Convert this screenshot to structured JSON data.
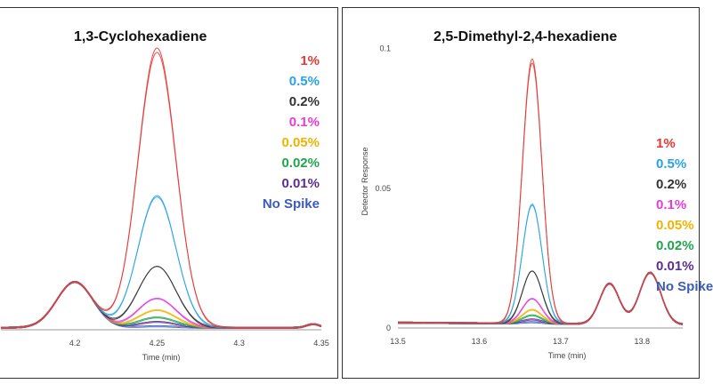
{
  "chart_data": [
    {
      "type": "line",
      "title": "1,3-Cyclohexadiene",
      "xlabel": "Time (min)",
      "ylabel": "",
      "x_ticks": [
        "4.2",
        "4.25",
        "4.3",
        "4.35"
      ],
      "y_ticks": [],
      "xlim": [
        4.155,
        4.35
      ],
      "ylim": [
        0,
        1.0
      ],
      "legend_placement": "top-right",
      "base_peak": {
        "center": 4.2,
        "width": 0.011,
        "height": 0.155
      },
      "main_peak": {
        "center": 4.25,
        "width": 0.0115
      },
      "series": [
        {
          "name": "1%",
          "color": "#e53935",
          "peak_height": 0.95
        },
        {
          "name": "0.5%",
          "color": "#29a3e8",
          "peak_height": 0.45
        },
        {
          "name": "0.2%",
          "color": "#333333",
          "peak_height": 0.21
        },
        {
          "name": "0.1%",
          "color": "#e83bd9",
          "peak_height": 0.1
        },
        {
          "name": "0.05%",
          "color": "#f2b200",
          "peak_height": 0.06
        },
        {
          "name": "0.02%",
          "color": "#1fa64a",
          "peak_height": 0.035
        },
        {
          "name": "0.01%",
          "color": "#5b2d8e",
          "peak_height": 0.02
        },
        {
          "name": "No Spike",
          "color": "#3b5bbd",
          "peak_height": 0.005
        }
      ]
    },
    {
      "type": "line",
      "title": "2,5-Dimethyl-2,4-hexadiene",
      "xlabel": "Time (min)",
      "ylabel": "Detector Response",
      "x_ticks": [
        "13.5",
        "13.6",
        "13.7",
        "13.8"
      ],
      "y_ticks": [
        "0",
        "0.05",
        "0.1"
      ],
      "xlim": [
        13.5,
        13.85
      ],
      "ylim": [
        0,
        0.105
      ],
      "legend_placement": "right",
      "base_peaks": [
        {
          "center": 13.76,
          "width": 0.012,
          "height": 0.0145
        },
        {
          "center": 13.81,
          "width": 0.013,
          "height": 0.0185
        }
      ],
      "main_peak": {
        "center": 13.665,
        "width": 0.012
      },
      "series": [
        {
          "name": "1%",
          "color": "#e53935",
          "peak_height": 0.095
        },
        {
          "name": "0.5%",
          "color": "#29a3e8",
          "peak_height": 0.043
        },
        {
          "name": "0.2%",
          "color": "#333333",
          "peak_height": 0.019
        },
        {
          "name": "0.1%",
          "color": "#e83bd9",
          "peak_height": 0.009
        },
        {
          "name": "0.05%",
          "color": "#f2b200",
          "peak_height": 0.005
        },
        {
          "name": "0.02%",
          "color": "#1fa64a",
          "peak_height": 0.003
        },
        {
          "name": "0.01%",
          "color": "#5b2d8e",
          "peak_height": 0.0015
        },
        {
          "name": "No Spike",
          "color": "#3b5bbd",
          "peak_height": 0.0005
        }
      ]
    }
  ]
}
